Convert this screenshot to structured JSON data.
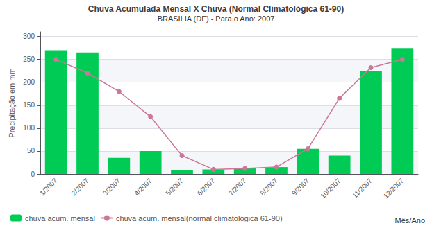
{
  "chart_data": {
    "type": "bar",
    "title": "Chuva Acumulada Mensal X Chuva (Normal Climatológica 61-90)",
    "subtitle": "BRASILIA (DF) - Para o Ano: 2007",
    "x_label": "Mês/Ano",
    "y_label": "Precipitação em mm",
    "categories": [
      "1/2007",
      "2/2007",
      "3/2007",
      "4/2007",
      "5/2007",
      "6/2007",
      "7/2007",
      "8/2007",
      "9/2007",
      "10/2007",
      "11/2007",
      "12/2007"
    ],
    "series": [
      {
        "name": "chuva acum. mensal",
        "type": "bar",
        "color": "#00CC55",
        "values": [
          270,
          265,
          35,
          50,
          8,
          10,
          12,
          15,
          55,
          40,
          225,
          275
        ]
      },
      {
        "name": "chuva acum. mensal(normal climatológica 61-90)",
        "type": "line",
        "color": "#CC7799",
        "marker": "circle",
        "values": [
          250,
          220,
          180,
          125,
          40,
          10,
          12,
          15,
          55,
          165,
          232,
          250
        ]
      }
    ],
    "ylim": [
      0,
      310
    ],
    "yticks": [
      0,
      50,
      100,
      150,
      200,
      250,
      300
    ],
    "grid": true,
    "legend": "lower left"
  }
}
